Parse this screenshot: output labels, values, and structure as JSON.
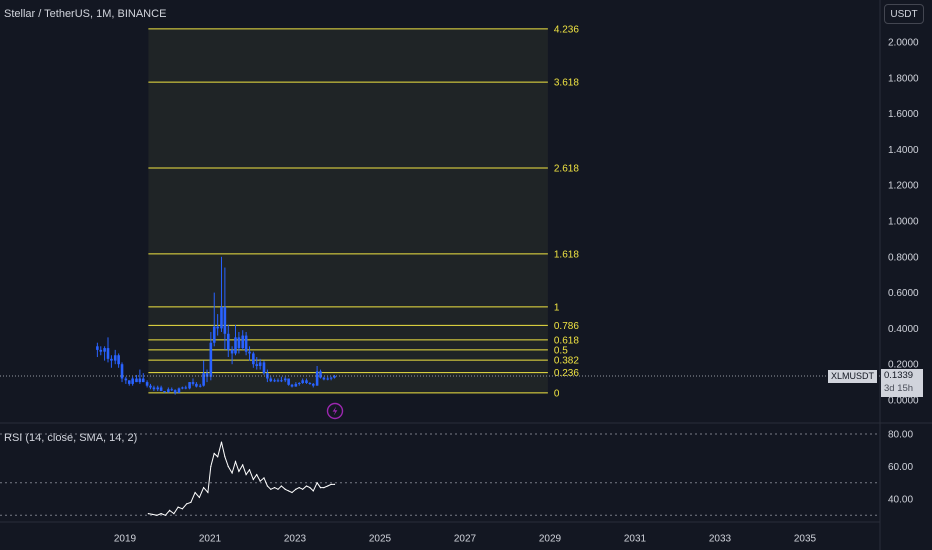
{
  "header": {
    "symbol_title": "Stellar / TetherUS, 1M, BINANCE",
    "currency_button": "USDT"
  },
  "price_tag": {
    "symbol": "XLMUSDT",
    "price": "0.1339",
    "countdown": "3d 15h"
  },
  "indicator": {
    "rsi_title": "RSI (14, close, SMA, 14, 2)"
  },
  "colors": {
    "background": "#131722",
    "candle": "#2962ff",
    "fib_line": "#f0e442",
    "fib_label": "#f0e442",
    "rsi_line": "#ffffff",
    "lightning_badge": "#9c27b0"
  },
  "icons": {
    "badge": "lightning-icon"
  },
  "chart_data": [
    {
      "type": "candlestick",
      "title": "Stellar / TetherUS, 1M, BINANCE",
      "y_axis_ticks": [
        "2.0000",
        "1.8000",
        "1.6000",
        "1.4000",
        "1.2000",
        "1.0000",
        "0.8000",
        "0.6000",
        "0.4000",
        "0.2000",
        "0.0000"
      ],
      "ylim": [
        -0.02,
        2.15
      ],
      "x_axis_ticks": [
        "2019",
        "2021",
        "2023",
        "2025",
        "2027",
        "2029",
        "2031",
        "2033",
        "2035"
      ],
      "xlim": [
        2017.8,
        2036.5
      ],
      "last_price": 0.1339,
      "series": [
        {
          "name": "XLMUSDT",
          "ohlc": [
            [
              2018.35,
              0.3,
              0.32,
              0.24,
              0.28
            ],
            [
              2018.43,
              0.28,
              0.3,
              0.25,
              0.27
            ],
            [
              2018.52,
              0.27,
              0.3,
              0.22,
              0.29
            ],
            [
              2018.6,
              0.29,
              0.35,
              0.21,
              0.23
            ],
            [
              2018.68,
              0.23,
              0.25,
              0.18,
              0.22
            ],
            [
              2018.77,
              0.22,
              0.28,
              0.2,
              0.25
            ],
            [
              2018.85,
              0.25,
              0.26,
              0.18,
              0.2
            ],
            [
              2018.93,
              0.2,
              0.21,
              0.1,
              0.12
            ],
            [
              2019.02,
              0.12,
              0.13,
              0.09,
              0.11
            ],
            [
              2019.1,
              0.11,
              0.11,
              0.08,
              0.09
            ],
            [
              2019.18,
              0.09,
              0.13,
              0.08,
              0.12
            ],
            [
              2019.27,
              0.12,
              0.14,
              0.1,
              0.1
            ],
            [
              2019.35,
              0.1,
              0.17,
              0.09,
              0.12
            ],
            [
              2019.43,
              0.12,
              0.15,
              0.1,
              0.1
            ],
            [
              2019.52,
              0.1,
              0.11,
              0.07,
              0.08
            ],
            [
              2019.6,
              0.08,
              0.09,
              0.06,
              0.07
            ],
            [
              2019.68,
              0.07,
              0.08,
              0.05,
              0.06
            ],
            [
              2019.77,
              0.06,
              0.08,
              0.05,
              0.07
            ],
            [
              2019.85,
              0.07,
              0.08,
              0.05,
              0.05
            ],
            [
              2019.93,
              0.05,
              0.05,
              0.04,
              0.045
            ],
            [
              2020.02,
              0.045,
              0.07,
              0.04,
              0.06
            ],
            [
              2020.1,
              0.06,
              0.07,
              0.05,
              0.055
            ],
            [
              2020.18,
              0.055,
              0.06,
              0.03,
              0.04
            ],
            [
              2020.27,
              0.04,
              0.07,
              0.04,
              0.065
            ],
            [
              2020.35,
              0.065,
              0.075,
              0.06,
              0.07
            ],
            [
              2020.43,
              0.07,
              0.08,
              0.06,
              0.065
            ],
            [
              2020.52,
              0.065,
              0.1,
              0.06,
              0.1
            ],
            [
              2020.6,
              0.1,
              0.12,
              0.08,
              0.09
            ],
            [
              2020.68,
              0.09,
              0.1,
              0.07,
              0.075
            ],
            [
              2020.77,
              0.075,
              0.09,
              0.07,
              0.08
            ],
            [
              2020.85,
              0.08,
              0.22,
              0.075,
              0.15
            ],
            [
              2020.93,
              0.15,
              0.17,
              0.1,
              0.13
            ],
            [
              2021.02,
              0.13,
              0.38,
              0.11,
              0.32
            ],
            [
              2021.1,
              0.32,
              0.6,
              0.3,
              0.41
            ],
            [
              2021.18,
              0.41,
              0.48,
              0.36,
              0.4
            ],
            [
              2021.27,
              0.4,
              0.8,
              0.38,
              0.52
            ],
            [
              2021.35,
              0.52,
              0.74,
              0.28,
              0.37
            ],
            [
              2021.43,
              0.37,
              0.42,
              0.24,
              0.28
            ],
            [
              2021.52,
              0.28,
              0.3,
              0.2,
              0.26
            ],
            [
              2021.6,
              0.26,
              0.42,
              0.25,
              0.35
            ],
            [
              2021.68,
              0.35,
              0.38,
              0.26,
              0.29
            ],
            [
              2021.77,
              0.29,
              0.39,
              0.28,
              0.36
            ],
            [
              2021.85,
              0.36,
              0.38,
              0.25,
              0.27
            ],
            [
              2021.93,
              0.27,
              0.3,
              0.22,
              0.26
            ],
            [
              2022.02,
              0.26,
              0.27,
              0.18,
              0.2
            ],
            [
              2022.1,
              0.2,
              0.24,
              0.17,
              0.19
            ],
            [
              2022.18,
              0.19,
              0.23,
              0.17,
              0.21
            ],
            [
              2022.27,
              0.21,
              0.22,
              0.14,
              0.15
            ],
            [
              2022.35,
              0.15,
              0.17,
              0.1,
              0.12
            ],
            [
              2022.43,
              0.12,
              0.13,
              0.1,
              0.105
            ],
            [
              2022.52,
              0.105,
              0.12,
              0.1,
              0.11
            ],
            [
              2022.6,
              0.11,
              0.12,
              0.1,
              0.105
            ],
            [
              2022.68,
              0.105,
              0.13,
              0.1,
              0.11
            ],
            [
              2022.77,
              0.11,
              0.13,
              0.1,
              0.12
            ],
            [
              2022.85,
              0.12,
              0.12,
              0.08,
              0.085
            ],
            [
              2022.93,
              0.085,
              0.09,
              0.07,
              0.075
            ],
            [
              2023.02,
              0.075,
              0.1,
              0.074,
              0.09
            ],
            [
              2023.1,
              0.09,
              0.1,
              0.08,
              0.095
            ],
            [
              2023.18,
              0.095,
              0.12,
              0.09,
              0.11
            ],
            [
              2023.27,
              0.11,
              0.12,
              0.09,
              0.095
            ],
            [
              2023.35,
              0.095,
              0.1,
              0.085,
              0.09
            ],
            [
              2023.43,
              0.09,
              0.095,
              0.07,
              0.08
            ],
            [
              2023.52,
              0.08,
              0.19,
              0.08,
              0.16
            ],
            [
              2023.6,
              0.16,
              0.17,
              0.12,
              0.125
            ],
            [
              2023.68,
              0.125,
              0.13,
              0.11,
              0.115
            ],
            [
              2023.77,
              0.115,
              0.13,
              0.11,
              0.12
            ],
            [
              2023.85,
              0.12,
              0.13,
              0.11,
              0.125
            ],
            [
              2023.93,
              0.125,
              0.14,
              0.12,
              0.1339
            ]
          ]
        }
      ],
      "annotations": {
        "fibonacci_extension": {
          "x_range": [
            2019.55,
            2028.95
          ],
          "levels": [
            {
              "label": "0",
              "price": 0.04
            },
            {
              "label": "0.236",
              "price": 0.153
            },
            {
              "label": "0.382",
              "price": 0.223
            },
            {
              "label": "0.5",
              "price": 0.28
            },
            {
              "label": "0.618",
              "price": 0.336
            },
            {
              "label": "0.786",
              "price": 0.417
            },
            {
              "label": "1",
              "price": 0.52
            },
            {
              "label": "1.618",
              "price": 0.816
            },
            {
              "label": "2.618",
              "price": 1.296
            },
            {
              "label": "3.618",
              "price": 1.776
            },
            {
              "label": "4.236",
              "price": 2.073
            }
          ]
        }
      }
    },
    {
      "type": "line",
      "title": "RSI (14, close, SMA, 14, 2)",
      "y_axis_ticks": [
        "80.00",
        "60.00",
        "40.00"
      ],
      "ylim": [
        25,
        85
      ],
      "reference_lines": [
        80,
        50,
        30
      ],
      "series": [
        {
          "name": "RSI",
          "x": [
            2019.55,
            2019.65,
            2019.75,
            2019.85,
            2019.95,
            2020.05,
            2020.15,
            2020.25,
            2020.35,
            2020.45,
            2020.55,
            2020.65,
            2020.75,
            2020.85,
            2020.95,
            2021.02,
            2021.1,
            2021.18,
            2021.27,
            2021.35,
            2021.43,
            2021.52,
            2021.6,
            2021.68,
            2021.77,
            2021.85,
            2021.93,
            2022.02,
            2022.1,
            2022.18,
            2022.27,
            2022.35,
            2022.43,
            2022.52,
            2022.6,
            2022.68,
            2022.77,
            2022.85,
            2022.93,
            2023.02,
            2023.1,
            2023.18,
            2023.27,
            2023.35,
            2023.43,
            2023.52,
            2023.6,
            2023.68,
            2023.77,
            2023.85,
            2023.93
          ],
          "values": [
            31,
            30.5,
            30,
            31,
            30,
            33,
            31,
            35,
            34,
            37,
            38,
            44,
            41,
            47,
            44,
            60,
            68,
            66,
            75,
            66,
            60,
            56,
            63,
            57,
            61,
            55,
            58,
            52,
            55,
            51,
            53,
            48,
            46,
            47,
            46,
            48,
            46,
            45,
            44,
            46,
            47,
            46,
            48,
            47,
            45,
            50,
            47,
            47,
            48,
            49,
            49
          ]
        }
      ]
    }
  ]
}
